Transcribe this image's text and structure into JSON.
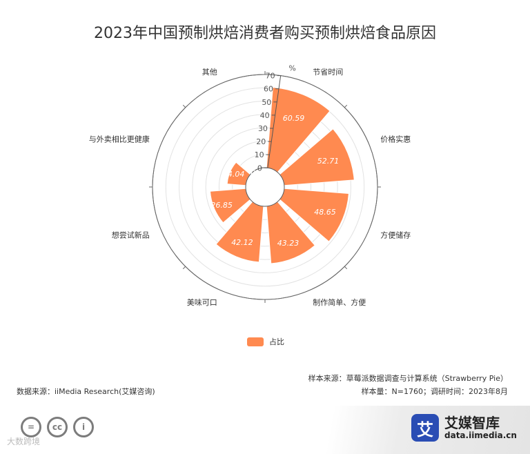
{
  "title": "2023年中国预制烘焙消费者购买预制烘焙食品原因",
  "chart_data": {
    "type": "polar-bar",
    "title": "2023年中国预制烘焙消费者购买预制烘焙食品原因",
    "radial_axis_unit": "%",
    "radial_ticks": [
      0,
      10,
      20,
      30,
      40,
      50,
      60,
      70
    ],
    "radial_range": [
      0,
      70
    ],
    "categories": [
      "节省时间",
      "价格实惠",
      "方便储存",
      "制作简单、方便",
      "美味可口",
      "想尝试新品",
      "与外卖相比更健康",
      "其他"
    ],
    "series": [
      {
        "name": "占比",
        "values": [
          60.59,
          52.71,
          48.65,
          43.23,
          42.12,
          26.85,
          14.04,
          0.12
        ]
      }
    ],
    "color": "#ff8a50",
    "legend_position": "bottom"
  },
  "footer": {
    "source_left": "数据来源：iiMedia Research(艾媒咨询)",
    "sample_source": "样本来源：草莓派数据调查与计算系统（Strawberry Pie）",
    "sample_size": "样本量：N=1760；调研时间：2023年8月"
  },
  "brand": {
    "name": "艾媒智库",
    "url": "data.iimedia.cn",
    "logo_char": "艾"
  },
  "watermark": "大数跨境",
  "cc_icons": [
    "=",
    "cc",
    "i"
  ]
}
